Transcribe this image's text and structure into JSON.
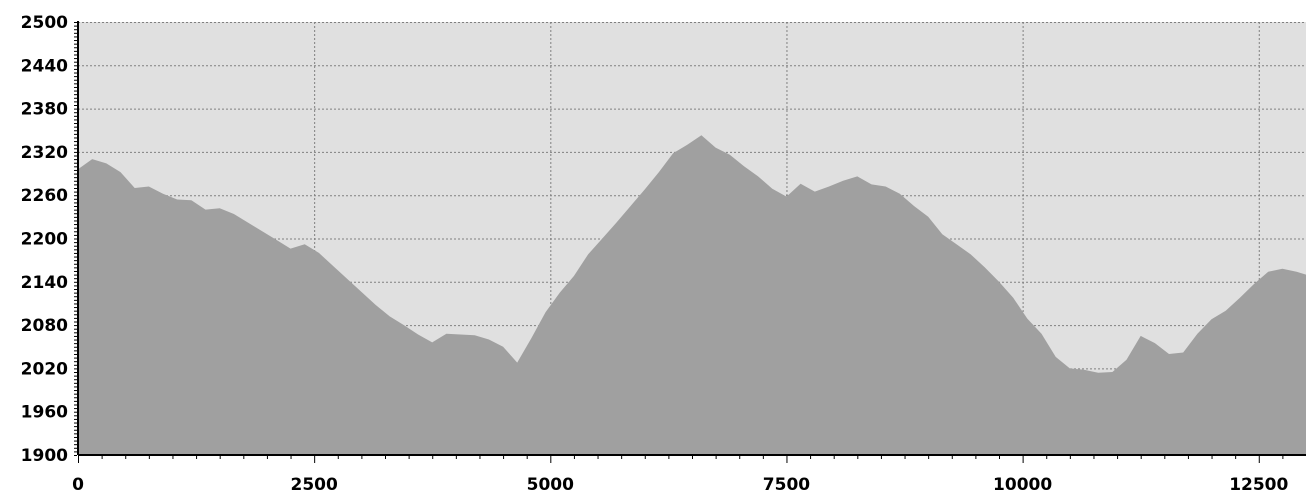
{
  "chart_data": {
    "type": "area",
    "title": "",
    "xlabel": "",
    "ylabel": "",
    "xlim": [
      0,
      13000
    ],
    "ylim": [
      1900,
      2500
    ],
    "grid": true,
    "x_ticks": [
      0,
      2500,
      5000,
      7500,
      10000,
      12500
    ],
    "y_ticks": [
      1900,
      1960,
      2020,
      2080,
      2140,
      2200,
      2260,
      2320,
      2380,
      2440,
      2500
    ],
    "colors": {
      "plot_background": "#e0e0e0",
      "area_fill": "#a0a0a0",
      "grid": "#808080",
      "axis": "#000000"
    },
    "series": [
      {
        "x": [
          0,
          150,
          300,
          450,
          600,
          750,
          900,
          1050,
          1200,
          1350,
          1500,
          1650,
          1800,
          1950,
          2100,
          2250,
          2400,
          2550,
          2700,
          2850,
          3000,
          3150,
          3300,
          3450,
          3600,
          3750,
          3900,
          4050,
          4200,
          4350,
          4500,
          4650,
          4800,
          4950,
          5100,
          5250,
          5400,
          5550,
          5700,
          5850,
          6000,
          6150,
          6300,
          6450,
          6600,
          6750,
          6900,
          7050,
          7200,
          7350,
          7500,
          7650,
          7800,
          7950,
          8100,
          8250,
          8400,
          8550,
          8700,
          8850,
          9000,
          9150,
          9300,
          9450,
          9600,
          9750,
          9900,
          10050,
          10200,
          10350,
          10500,
          10650,
          10800,
          10950,
          11100,
          11250,
          11400,
          11550,
          11700,
          11850,
          12000,
          12150,
          12300,
          12450,
          12600,
          12750,
          12900,
          13000
        ],
        "values": [
          2296,
          2310,
          2304,
          2292,
          2270,
          2272,
          2262,
          2254,
          2253,
          2240,
          2242,
          2234,
          2222,
          2210,
          2198,
          2186,
          2192,
          2180,
          2162,
          2144,
          2126,
          2108,
          2092,
          2080,
          2067,
          2056,
          2068,
          2067,
          2066,
          2060,
          2050,
          2028,
          2062,
          2098,
          2125,
          2148,
          2178,
          2200,
          2222,
          2245,
          2268,
          2292,
          2318,
          2330,
          2343,
          2326,
          2316,
          2300,
          2286,
          2269,
          2258,
          2276,
          2265,
          2272,
          2280,
          2286,
          2275,
          2272,
          2262,
          2245,
          2230,
          2206,
          2192,
          2178,
          2160,
          2140,
          2118,
          2089,
          2068,
          2036,
          2020,
          2018,
          2014,
          2015,
          2032,
          2065,
          2055,
          2040,
          2042,
          2068,
          2088,
          2100,
          2118,
          2137,
          2154,
          2158,
          2154,
          2150
        ]
      }
    ]
  }
}
